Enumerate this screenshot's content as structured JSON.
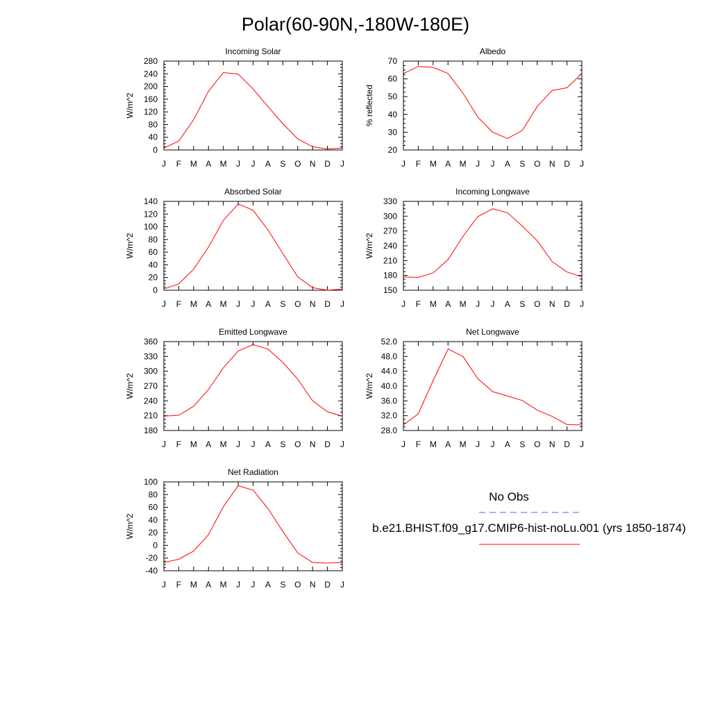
{
  "title": "Polar(60-90N,-180W-180E)",
  "legend": {
    "obs_label": "No Obs",
    "obs_color": "#5a5aff",
    "model_label": "b.e21.BHIST.f09_g17.CMIP6-hist-noLu.001 (yrs 1850-1874)",
    "model_color": "#ff0000"
  },
  "chart_data": [
    {
      "type": "line",
      "title": "Incoming Solar",
      "ylabel": "W/m^2",
      "categories": [
        "J",
        "F",
        "M",
        "A",
        "M",
        "J",
        "J",
        "A",
        "S",
        "O",
        "N",
        "D",
        "J"
      ],
      "ylim": [
        0,
        280
      ],
      "yticks": [
        "0",
        "40",
        "80",
        "120",
        "160",
        "200",
        "240",
        "280"
      ],
      "series": [
        {
          "color": "#ff0000",
          "values": [
            6,
            28,
            95,
            185,
            244,
            239,
            192,
            137,
            83,
            35,
            10,
            3,
            6
          ]
        }
      ]
    },
    {
      "type": "line",
      "title": "Albedo",
      "ylabel": "% reflected",
      "categories": [
        "J",
        "F",
        "M",
        "A",
        "M",
        "J",
        "J",
        "A",
        "S",
        "O",
        "N",
        "D",
        "J"
      ],
      "ylim": [
        20,
        70
      ],
      "yticks": [
        "20",
        "30",
        "40",
        "50",
        "60",
        "70"
      ],
      "series": [
        {
          "color": "#ff0000",
          "values": [
            63,
            67,
            66.5,
            63,
            52,
            38.5,
            30,
            26.5,
            31,
            44.5,
            53.5,
            55,
            63
          ]
        }
      ]
    },
    {
      "type": "line",
      "title": "Absorbed Solar",
      "ylabel": "W/m^2",
      "categories": [
        "J",
        "F",
        "M",
        "A",
        "M",
        "J",
        "J",
        "A",
        "S",
        "O",
        "N",
        "D",
        "J"
      ],
      "ylim": [
        0,
        140
      ],
      "yticks": [
        "0",
        "20",
        "40",
        "60",
        "80",
        "100",
        "120",
        "140"
      ],
      "series": [
        {
          "color": "#ff0000",
          "values": [
            2,
            10,
            33,
            68,
            110,
            136,
            126,
            95,
            58,
            21,
            4,
            0,
            2
          ]
        }
      ]
    },
    {
      "type": "line",
      "title": "Incoming Longwave",
      "ylabel": "W/m^2",
      "categories": [
        "J",
        "F",
        "M",
        "A",
        "M",
        "J",
        "J",
        "A",
        "S",
        "O",
        "N",
        "D",
        "J"
      ],
      "ylim": [
        150,
        330
      ],
      "yticks": [
        "150",
        "180",
        "210",
        "240",
        "270",
        "300",
        "330"
      ],
      "series": [
        {
          "color": "#ff0000",
          "values": [
            177,
            176,
            185,
            212,
            259,
            299,
            315,
            307,
            280,
            250,
            208,
            187,
            177
          ]
        }
      ]
    },
    {
      "type": "line",
      "title": "Emitted Longwave",
      "ylabel": "W/m^2",
      "categories": [
        "J",
        "F",
        "M",
        "A",
        "M",
        "J",
        "J",
        "A",
        "S",
        "O",
        "N",
        "D",
        "J"
      ],
      "ylim": [
        180,
        360
      ],
      "yticks": [
        "180",
        "210",
        "240",
        "270",
        "300",
        "330",
        "360"
      ],
      "series": [
        {
          "color": "#ff0000",
          "values": [
            209,
            211,
            229,
            263,
            307,
            341,
            354,
            345,
            318,
            284,
            240,
            218,
            209
          ]
        }
      ]
    },
    {
      "type": "line",
      "title": "Net Longwave",
      "ylabel": "W/m^2",
      "categories": [
        "J",
        "F",
        "M",
        "A",
        "M",
        "J",
        "J",
        "A",
        "S",
        "O",
        "N",
        "D",
        "J"
      ],
      "ylim": [
        28,
        52
      ],
      "yticks": [
        "28.0",
        "32.0",
        "36.0",
        "40.0",
        "44.0",
        "48.0",
        "52.0"
      ],
      "series": [
        {
          "color": "#ff0000",
          "values": [
            29.5,
            32.5,
            41.5,
            50,
            48,
            42,
            38.5,
            37.3,
            36.1,
            33.5,
            31.8,
            29.6,
            29.5
          ]
        }
      ]
    },
    {
      "type": "line",
      "title": "Net Radiation",
      "ylabel": "W/m^2",
      "categories": [
        "J",
        "F",
        "M",
        "A",
        "M",
        "J",
        "J",
        "A",
        "S",
        "O",
        "N",
        "D",
        "J"
      ],
      "ylim": [
        -40,
        100
      ],
      "yticks": [
        "-40",
        "-20",
        "0",
        "20",
        "40",
        "60",
        "80",
        "100"
      ],
      "series": [
        {
          "color": "#ff0000",
          "values": [
            -27,
            -22,
            -9,
            17,
            61,
            94,
            87,
            58,
            22,
            -12,
            -27,
            -28,
            -27
          ]
        }
      ]
    }
  ]
}
